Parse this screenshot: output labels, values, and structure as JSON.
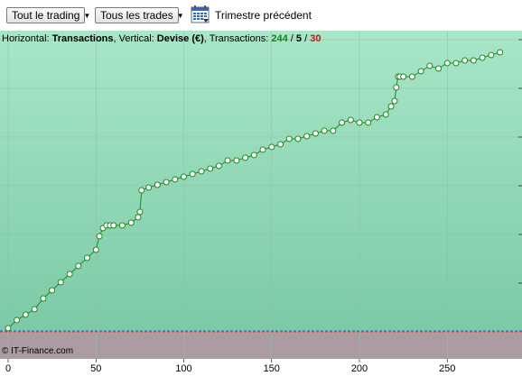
{
  "toolbar": {
    "period_filter": "Tout le trading",
    "trade_filter": "Tous les trades",
    "calendar_icon": "calendar-icon",
    "calendar_label": "Trimestre précédent"
  },
  "info": {
    "horizontal_label": "Horizontal: ",
    "horizontal_value": "Transactions",
    "vertical_label": ", Vertical: ",
    "vertical_value": "Devise (€)",
    "transactions_label": ", Transactions: ",
    "count_total": "244",
    "sep1": " / ",
    "count_mid": "5",
    "sep2": " / ",
    "count_red": "30"
  },
  "credit": "© IT-Finance.com",
  "colors": {
    "plot_bg_top": "#a8e6c8",
    "plot_bg_bottom": "#7ccaa6",
    "negative_bg": "#ad9ba3",
    "line": "#1f8a1f",
    "marker_fill": "#ffffff",
    "baseline_red": "#e04040",
    "baseline_blue": "#4060e0"
  },
  "chart_data": {
    "type": "line",
    "x_ticks": [
      "0",
      "50",
      "100",
      "150",
      "200",
      "250"
    ],
    "xlim": [
      0,
      285
    ],
    "ylim": [
      0,
      100
    ],
    "grid": true,
    "series": [
      {
        "x": [
          0,
          5,
          10,
          15,
          20,
          25,
          30,
          35,
          40,
          45,
          50,
          52,
          54,
          56,
          58,
          60,
          65,
          70,
          74,
          75,
          76,
          80,
          85,
          90,
          95,
          100,
          105,
          110,
          115,
          120,
          125,
          130,
          135,
          140,
          145,
          150,
          155,
          160,
          165,
          170,
          175,
          180,
          185,
          190,
          195,
          200,
          205,
          210,
          215,
          218,
          220,
          221,
          222,
          223,
          225,
          230,
          235,
          240,
          245,
          250,
          255,
          260,
          265,
          270,
          275,
          280
        ],
        "y": [
          0,
          3,
          5,
          7,
          11,
          14,
          17,
          20,
          23,
          26,
          29,
          34,
          37,
          38,
          38,
          38,
          38,
          39,
          41,
          43,
          51,
          52,
          53,
          54,
          55,
          56,
          57,
          58,
          59,
          60,
          62,
          62,
          63,
          64,
          66,
          67,
          68,
          70,
          70,
          71,
          72,
          73,
          73,
          76,
          77,
          76,
          76,
          78,
          79,
          82,
          84,
          89,
          93,
          93,
          93,
          93,
          95,
          97,
          96,
          98,
          98,
          99,
          99,
          100,
          101,
          102
        ]
      }
    ]
  }
}
